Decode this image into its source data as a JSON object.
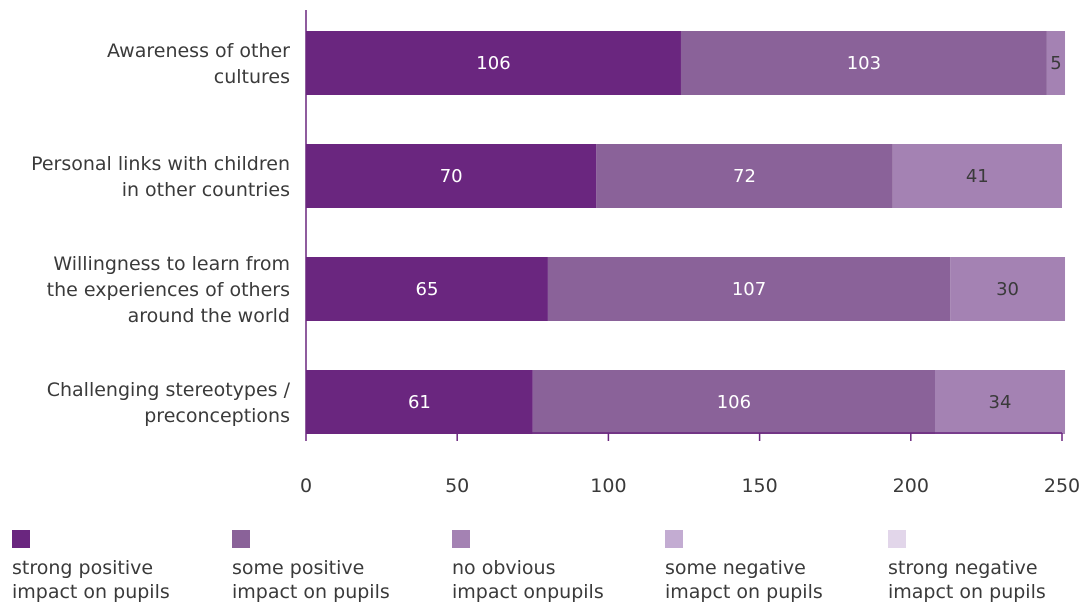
{
  "chart_data": {
    "type": "bar",
    "orientation": "horizontal",
    "stacked": true,
    "categories": [
      "Awareness of other\ncultures",
      "Personal links with children\nin other countries",
      "Willingness to learn from\nthe experiences of others\naround the world",
      "Challenging stereotypes /\npreconceptions"
    ],
    "series": [
      {
        "name": "strong positive\nimpact on pupils",
        "color": "#6a267f",
        "label_color": "#ffffff",
        "values": [
          124,
          96,
          80,
          75
        ],
        "labels": [
          "106",
          "70",
          "65",
          "61"
        ]
      },
      {
        "name": "some positive\nimpact on pupils",
        "color": "#8a6299",
        "label_color": "#ffffff",
        "values": [
          121,
          98,
          133,
          133
        ],
        "labels": [
          "103",
          "72",
          "107",
          "106"
        ]
      },
      {
        "name": "no obvious\nimpact onpupils",
        "color": "#a482b3",
        "label_color": "#3a3a3a",
        "values": [
          6,
          56,
          38,
          43
        ],
        "labels": [
          "5",
          "41",
          "30",
          "34"
        ]
      },
      {
        "name": "some negative\nimapct on pupils",
        "color": "#c3acd2",
        "label_color": "#3a3a3a",
        "values": [
          0,
          0,
          0,
          0
        ],
        "labels": [
          "",
          "",
          "",
          ""
        ]
      },
      {
        "name": "strong negative\nimapct on pupils",
        "color": "#e2d6ea",
        "label_color": "#3a3a3a",
        "values": [
          0,
          0,
          0,
          0
        ],
        "labels": [
          "",
          "",
          "",
          ""
        ]
      }
    ],
    "xlim": [
      0,
      250
    ],
    "xticks": [
      "0",
      "50",
      "100",
      "150",
      "200",
      "250"
    ],
    "grid": false,
    "legend": "bottom"
  }
}
